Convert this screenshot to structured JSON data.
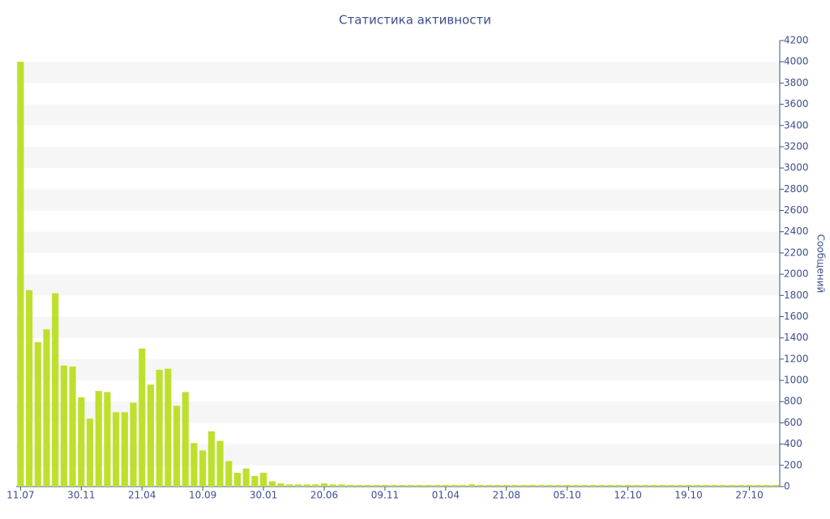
{
  "chart_data": {
    "type": "bar",
    "title": "Статистика активности",
    "y_label": "Сообщений",
    "categories": [
      "11.07",
      null,
      null,
      null,
      null,
      null,
      null,
      "30.11",
      null,
      null,
      null,
      null,
      null,
      null,
      "21.04",
      null,
      null,
      null,
      null,
      null,
      null,
      "10.09",
      null,
      null,
      null,
      null,
      null,
      null,
      "30.01",
      null,
      null,
      null,
      null,
      null,
      null,
      "20.06",
      null,
      null,
      null,
      null,
      null,
      null,
      "09.11",
      null,
      null,
      null,
      null,
      null,
      null,
      "01.04",
      null,
      null,
      null,
      null,
      null,
      null,
      "21.08",
      null,
      null,
      null,
      null,
      null,
      null,
      "05.10",
      null,
      null,
      null,
      null,
      null,
      null,
      "12.10",
      null,
      null,
      null,
      null,
      null,
      null,
      "19.10",
      null,
      null,
      null,
      null,
      null,
      null,
      "27.10",
      null,
      null,
      null
    ],
    "values": [
      4000,
      1850,
      1360,
      1480,
      1820,
      1140,
      1130,
      840,
      640,
      900,
      890,
      700,
      700,
      790,
      1300,
      960,
      1100,
      1110,
      760,
      890,
      410,
      340,
      520,
      430,
      240,
      130,
      170,
      100,
      130,
      50,
      30,
      20,
      20,
      20,
      20,
      30,
      20,
      20,
      15,
      15,
      15,
      15,
      15,
      15,
      15,
      15,
      15,
      15,
      15,
      15,
      15,
      15,
      20,
      15,
      15,
      15,
      15,
      15,
      15,
      15,
      15,
      15,
      15,
      15,
      15,
      15,
      15,
      15,
      15,
      15,
      15,
      15,
      15,
      15,
      15,
      15,
      15,
      15,
      15,
      15,
      15,
      15,
      15,
      15,
      15,
      15,
      15,
      15
    ],
    "color": "#bde02c",
    "ylim": [
      0,
      4200
    ],
    "yticks": [
      0,
      200,
      400,
      600,
      800,
      1000,
      1200,
      1400,
      1600,
      1800,
      2000,
      2200,
      2400,
      2600,
      2800,
      3000,
      3200,
      3400,
      3600,
      3800,
      4000,
      4200
    ],
    "grid": true
  }
}
